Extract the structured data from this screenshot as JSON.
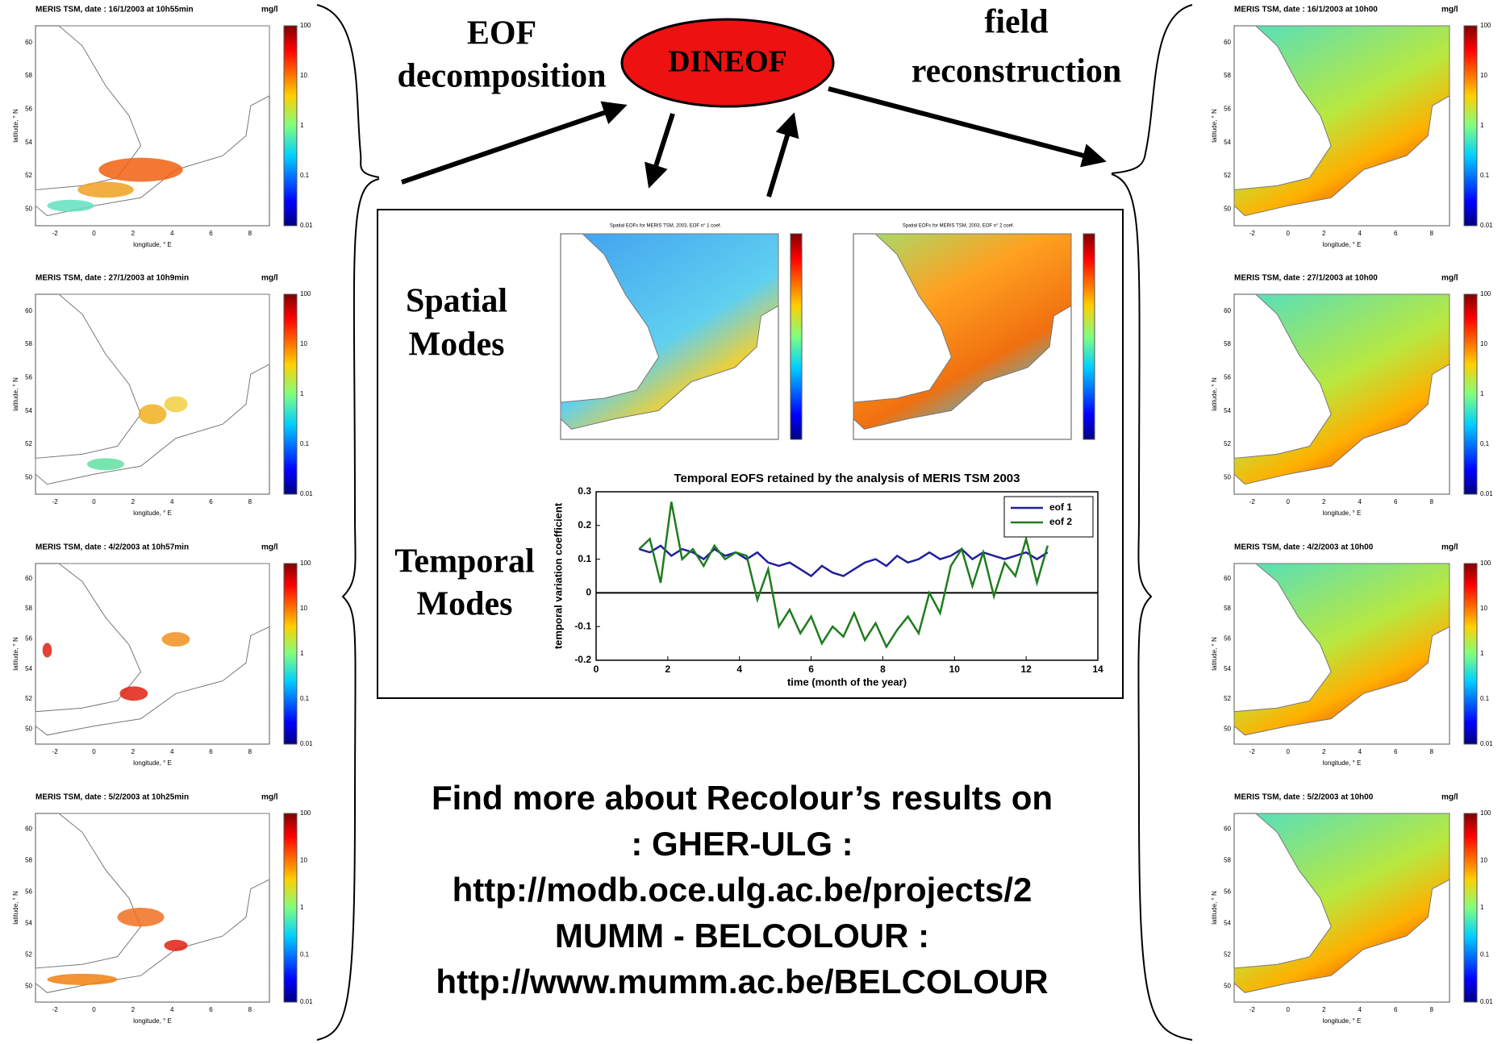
{
  "header": {
    "left_label": [
      "EOF",
      "decomposition"
    ],
    "method": "DINEOF",
    "right_label": [
      "field",
      "reconstruction"
    ]
  },
  "map_axes": {
    "ylabel": "latitude, ° N",
    "xlabel": "longitude, ° E",
    "lat_ticks": [
      50,
      52,
      54,
      56,
      58,
      60
    ],
    "lon_ticks": [
      -2,
      0,
      2,
      4,
      6,
      8
    ],
    "colorbar_ticks": [
      100,
      10,
      1,
      0.1,
      0.01
    ]
  },
  "left_maps": [
    {
      "title": "MERIS TSM, date : 16/1/2003 at 10h55min",
      "unit": "mg/l"
    },
    {
      "title": "MERIS TSM, date : 27/1/2003 at 10h9min",
      "unit": "mg/l"
    },
    {
      "title": "MERIS TSM, date : 4/2/2003 at 10h57min",
      "unit": "mg/l"
    },
    {
      "title": "MERIS TSM, date : 5/2/2003 at 10h25min",
      "unit": "mg/l"
    }
  ],
  "right_maps": [
    {
      "title": "MERIS TSM, date : 16/1/2003 at 10h00",
      "unit": "mg/l"
    },
    {
      "title": "MERIS TSM, date : 27/1/2003 at 10h00",
      "unit": "mg/l"
    },
    {
      "title": "MERIS TSM, date : 4/2/2003 at 10h00",
      "unit": "mg/l"
    },
    {
      "title": "MERIS TSM, date : 5/2/2003 at 10h00",
      "unit": "mg/l"
    }
  ],
  "spatial": {
    "label": [
      "Spatial",
      "Modes"
    ],
    "maps": [
      {
        "title": "Spatial EOFs for MERIS TSM, 2003, EOF n° 1 coef."
      },
      {
        "title": "Spatial EOFs for MERIS TSM, 2003, EOF n° 2 coef."
      }
    ]
  },
  "temporal_label": [
    "Temporal",
    "Modes"
  ],
  "chart_data": {
    "type": "line",
    "title": "Temporal EOFS retained by the analysis of MERIS TSM 2003",
    "xlabel": "time (month of the year)",
    "ylabel": "temporal variation coefficient",
    "x": [
      1.2,
      1.5,
      1.8,
      2.1,
      2.4,
      2.7,
      3.0,
      3.3,
      3.6,
      3.9,
      4.2,
      4.5,
      4.8,
      5.1,
      5.4,
      5.7,
      6.0,
      6.3,
      6.6,
      6.9,
      7.2,
      7.5,
      7.8,
      8.1,
      8.4,
      8.7,
      9.0,
      9.3,
      9.6,
      9.9,
      10.2,
      10.5,
      10.8,
      11.1,
      11.4,
      11.7,
      12.0,
      12.3,
      12.6
    ],
    "series": [
      {
        "name": "eof 1",
        "color": "#1f1f9e",
        "values": [
          0.13,
          0.12,
          0.14,
          0.11,
          0.13,
          0.12,
          0.1,
          0.13,
          0.11,
          0.12,
          0.1,
          0.12,
          0.09,
          0.08,
          0.09,
          0.07,
          0.05,
          0.08,
          0.06,
          0.05,
          0.07,
          0.09,
          0.1,
          0.08,
          0.11,
          0.09,
          0.1,
          0.12,
          0.1,
          0.11,
          0.13,
          0.1,
          0.12,
          0.11,
          0.1,
          0.11,
          0.12,
          0.1,
          0.12
        ]
      },
      {
        "name": "eof 2",
        "color": "#1e7d1e",
        "values": [
          0.13,
          0.16,
          0.03,
          0.27,
          0.1,
          0.13,
          0.08,
          0.14,
          0.1,
          0.12,
          0.11,
          -0.02,
          0.07,
          -0.1,
          -0.05,
          -0.12,
          -0.07,
          -0.15,
          -0.1,
          -0.13,
          -0.06,
          -0.14,
          -0.09,
          -0.16,
          -0.11,
          -0.07,
          -0.12,
          0,
          -0.06,
          0.08,
          0.13,
          0.02,
          0.12,
          -0.01,
          0.09,
          0.05,
          0.16,
          0.03,
          0.14
        ]
      }
    ],
    "xlim": [
      0,
      14
    ],
    "xticks": [
      0,
      2,
      4,
      6,
      8,
      10,
      12,
      14
    ],
    "ylim": [
      -0.2,
      0.3
    ],
    "yticks": [
      -0.2,
      -0.1,
      0,
      0.1,
      0.2,
      0.3
    ],
    "zero_line": true,
    "legend": "upper right"
  },
  "footer": {
    "lines": [
      "Find more about Recolour’s results on",
      ": GHER-ULG :",
      "http://modb.oce.ulg.ac.be/projects/2",
      "MUMM - BELCOLOUR :",
      "http://www.mumm.ac.be/BELCOLOUR"
    ]
  }
}
